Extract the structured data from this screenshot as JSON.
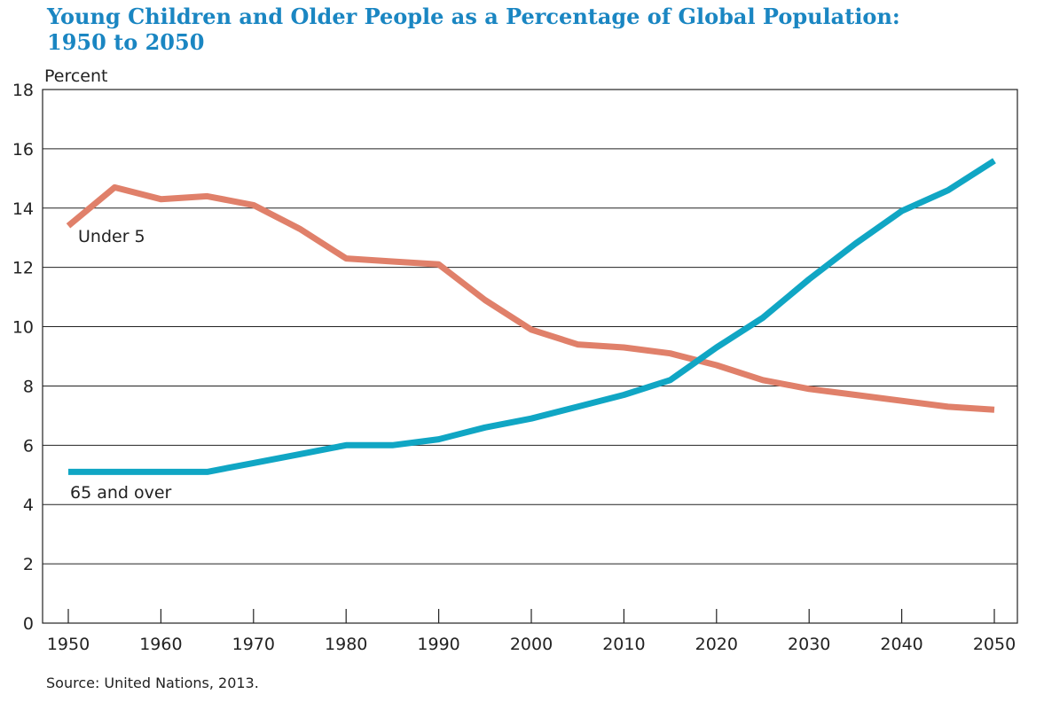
{
  "title_line1": "Young Children and Older People as a Percentage of Global Population:",
  "title_line2": "1950 to 2050",
  "source": "Source: United Nations, 2013.",
  "colors": {
    "under5": "#e0806a",
    "over65": "#10a6c4",
    "title": "#1a86c2"
  },
  "chart_data": {
    "type": "line",
    "title": "Young Children and Older People as a Percentage of Global Population: 1950 to 2050",
    "xlabel": "",
    "ylabel": "Percent",
    "xlim": [
      1950,
      2050
    ],
    "ylim": [
      0,
      18
    ],
    "xticks": [
      1950,
      1960,
      1970,
      1980,
      1990,
      2000,
      2010,
      2020,
      2030,
      2040,
      2050
    ],
    "yticks": [
      0,
      2,
      4,
      6,
      8,
      10,
      12,
      14,
      16,
      18
    ],
    "grid": "horizontal",
    "x": [
      1950,
      1955,
      1960,
      1965,
      1970,
      1975,
      1980,
      1985,
      1990,
      1995,
      2000,
      2005,
      2010,
      2015,
      2020,
      2025,
      2030,
      2035,
      2040,
      2045,
      2050
    ],
    "series": [
      {
        "name": "Under 5",
        "color": "#e0806a",
        "values": [
          13.4,
          14.7,
          14.3,
          14.4,
          14.1,
          13.3,
          12.3,
          12.2,
          12.1,
          10.9,
          9.9,
          9.4,
          9.3,
          9.1,
          8.7,
          8.2,
          7.9,
          7.7,
          7.5,
          7.3,
          7.2
        ]
      },
      {
        "name": "65 and over",
        "color": "#10a6c4",
        "values": [
          5.1,
          5.1,
          5.1,
          5.1,
          5.4,
          5.7,
          6.0,
          6.0,
          6.2,
          6.6,
          6.9,
          7.3,
          7.7,
          8.2,
          9.3,
          10.3,
          11.6,
          12.8,
          13.9,
          14.6,
          15.6
        ]
      }
    ]
  }
}
